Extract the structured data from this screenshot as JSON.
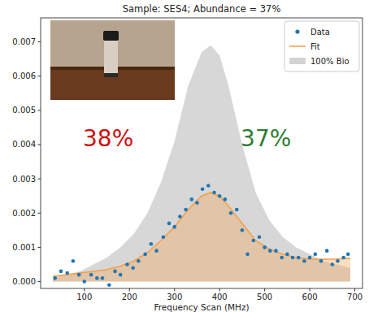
{
  "chart_data": {
    "type": "scatter",
    "title": "Sample: SES4; Abundance = 37%",
    "x_label": "Frequency Scan (MHz)",
    "xlim": [
      3,
      717
    ],
    "xticks": [
      100,
      200,
      300,
      400,
      500,
      600,
      700
    ],
    "ylim": [
      -0.0002,
      0.0077
    ],
    "yticks": [
      {
        "value": 0,
        "label": "0.000"
      },
      {
        "value": 0.001,
        "label": "0.001"
      },
      {
        "value": 0.002,
        "label": "0.002"
      },
      {
        "value": 0.003,
        "label": "0.003"
      },
      {
        "value": 0.004,
        "label": "0.004"
      },
      {
        "value": 0.005,
        "label": "0.005"
      },
      {
        "value": 0.006,
        "label": "0.006"
      },
      {
        "value": 0.007,
        "label": "0.007"
      }
    ],
    "grid": false,
    "legend": "upper right",
    "annotations": [
      {
        "text": "38%",
        "color": "#cc1111"
      },
      {
        "text": "37%",
        "color": "#2e7d32"
      }
    ],
    "series": [
      {
        "name": "Data",
        "type": "scatter",
        "marker": "circle",
        "color": "#1f77b4",
        "x": [
          35,
          48,
          62,
          75,
          88,
          100,
          115,
          128,
          140,
          155,
          168,
          180,
          195,
          208,
          220,
          235,
          248,
          260,
          275,
          288,
          300,
          312,
          325,
          338,
          350,
          362,
          375,
          388,
          400,
          412,
          425,
          438,
          450,
          462,
          475,
          488,
          500,
          512,
          525,
          538,
          550,
          562,
          575,
          588,
          600,
          612,
          625,
          638,
          650,
          662,
          675,
          685
        ],
        "values": [
          0.0001,
          0.0003,
          0.00025,
          0.0006,
          0.0002,
          0.0,
          0.0002,
          0.0001,
          0.0001,
          -0.0001,
          0.0003,
          0.0002,
          0.0005,
          0.0004,
          0.0006,
          0.0008,
          0.0011,
          0.0009,
          0.0013,
          0.0017,
          0.0016,
          0.0019,
          0.0021,
          0.0024,
          0.0023,
          0.0027,
          0.0028,
          0.0026,
          0.0025,
          0.0024,
          0.002,
          0.0021,
          0.0015,
          0.0008,
          0.0012,
          0.0013,
          0.001,
          0.0009,
          0.0009,
          0.0007,
          0.0008,
          0.0007,
          0.0007,
          0.0006,
          0.0007,
          0.0008,
          0.0006,
          0.0009,
          0.0005,
          0.0006,
          0.0007,
          0.0008
        ]
      },
      {
        "name": "Fit",
        "type": "area",
        "line_style": "solid",
        "color": "#f5a04a",
        "x": [
          30,
          60,
          90,
          120,
          150,
          180,
          210,
          240,
          270,
          300,
          330,
          360,
          380,
          400,
          420,
          450,
          480,
          510,
          540,
          570,
          600,
          630,
          660,
          690
        ],
        "values": [
          0.00015,
          0.0002,
          0.00025,
          0.0003,
          0.00035,
          0.00045,
          0.0006,
          0.00085,
          0.0012,
          0.0016,
          0.0021,
          0.0025,
          0.0026,
          0.0025,
          0.0022,
          0.0017,
          0.0012,
          0.00095,
          0.0008,
          0.0007,
          0.00066,
          0.00065,
          0.00066,
          0.00068
        ]
      },
      {
        "name": "100% Bio",
        "type": "area",
        "color": "#d3d3d3",
        "x": [
          30,
          60,
          90,
          120,
          150,
          180,
          210,
          240,
          270,
          300,
          330,
          360,
          380,
          400,
          420,
          450,
          480,
          510,
          540,
          570,
          600,
          630,
          660,
          690
        ],
        "values": [
          0.0001,
          0.0002,
          0.0003,
          0.0005,
          0.0007,
          0.001,
          0.0014,
          0.002,
          0.0029,
          0.0041,
          0.0057,
          0.0067,
          0.0069,
          0.0066,
          0.0057,
          0.004,
          0.0026,
          0.0018,
          0.0013,
          0.001,
          0.0008,
          0.0006,
          0.0005,
          0.0004
        ]
      }
    ]
  }
}
